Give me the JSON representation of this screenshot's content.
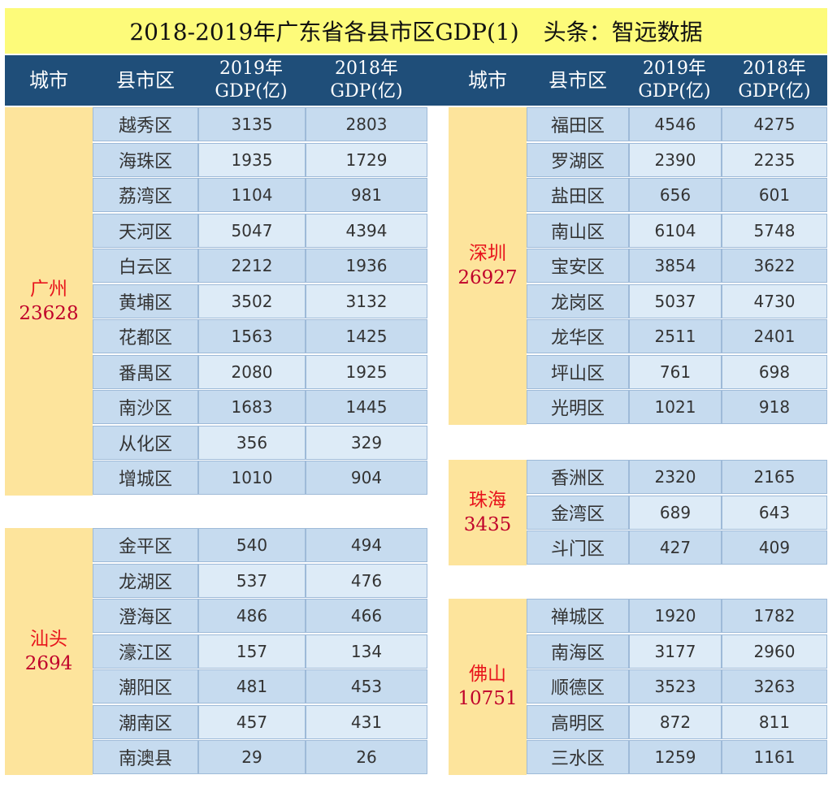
{
  "title": {
    "main": "2018-2019年广东省各县市区GDP(1)",
    "source": "头条：智远数据"
  },
  "headers": {
    "city": "城市",
    "district": "县市区",
    "y2019_line1": "2019年",
    "y2019_line2": "GDP(亿)",
    "y2018_line1": "2018年",
    "y2018_line2": "GDP(亿)"
  },
  "groups": [
    {
      "city": "广州",
      "total": "23628",
      "rows": [
        {
          "district": "越秀区",
          "gdp2019": "3135",
          "gdp2018": "2803"
        },
        {
          "district": "海珠区",
          "gdp2019": "1935",
          "gdp2018": "1729"
        },
        {
          "district": "荔湾区",
          "gdp2019": "1104",
          "gdp2018": "981"
        },
        {
          "district": "天河区",
          "gdp2019": "5047",
          "gdp2018": "4394"
        },
        {
          "district": "白云区",
          "gdp2019": "2212",
          "gdp2018": "1936"
        },
        {
          "district": "黄埔区",
          "gdp2019": "3502",
          "gdp2018": "3132"
        },
        {
          "district": "花都区",
          "gdp2019": "1563",
          "gdp2018": "1425"
        },
        {
          "district": "番禺区",
          "gdp2019": "2080",
          "gdp2018": "1925"
        },
        {
          "district": "南沙区",
          "gdp2019": "1683",
          "gdp2018": "1445"
        },
        {
          "district": "从化区",
          "gdp2019": "356",
          "gdp2018": "329"
        },
        {
          "district": "增城区",
          "gdp2019": "1010",
          "gdp2018": "904"
        }
      ]
    },
    {
      "city": "汕头",
      "total": "2694",
      "rows": [
        {
          "district": "金平区",
          "gdp2019": "540",
          "gdp2018": "494"
        },
        {
          "district": "龙湖区",
          "gdp2019": "537",
          "gdp2018": "476"
        },
        {
          "district": "澄海区",
          "gdp2019": "486",
          "gdp2018": "466"
        },
        {
          "district": "濠江区",
          "gdp2019": "157",
          "gdp2018": "134"
        },
        {
          "district": "潮阳区",
          "gdp2019": "481",
          "gdp2018": "453"
        },
        {
          "district": "潮南区",
          "gdp2019": "457",
          "gdp2018": "431"
        },
        {
          "district": "南澳县",
          "gdp2019": "29",
          "gdp2018": "26"
        }
      ]
    },
    {
      "city": "深圳",
      "total": "26927",
      "rows": [
        {
          "district": "福田区",
          "gdp2019": "4546",
          "gdp2018": "4275"
        },
        {
          "district": "罗湖区",
          "gdp2019": "2390",
          "gdp2018": "2235"
        },
        {
          "district": "盐田区",
          "gdp2019": "656",
          "gdp2018": "601"
        },
        {
          "district": "南山区",
          "gdp2019": "6104",
          "gdp2018": "5748"
        },
        {
          "district": "宝安区",
          "gdp2019": "3854",
          "gdp2018": "3622"
        },
        {
          "district": "龙岗区",
          "gdp2019": "5037",
          "gdp2018": "4730"
        },
        {
          "district": "龙华区",
          "gdp2019": "2511",
          "gdp2018": "2401"
        },
        {
          "district": "坪山区",
          "gdp2019": "761",
          "gdp2018": "698"
        },
        {
          "district": "光明区",
          "gdp2019": "1021",
          "gdp2018": "918"
        }
      ]
    },
    {
      "city": "珠海",
      "total": "3435",
      "rows": [
        {
          "district": "香洲区",
          "gdp2019": "2320",
          "gdp2018": "2165"
        },
        {
          "district": "金湾区",
          "gdp2019": "689",
          "gdp2018": "643"
        },
        {
          "district": "斗门区",
          "gdp2019": "427",
          "gdp2018": "409"
        }
      ]
    },
    {
      "city": "佛山",
      "total": "10751",
      "rows": [
        {
          "district": "禅城区",
          "gdp2019": "1920",
          "gdp2018": "1782"
        },
        {
          "district": "南海区",
          "gdp2019": "3177",
          "gdp2018": "2960"
        },
        {
          "district": "顺德区",
          "gdp2019": "3523",
          "gdp2018": "3263"
        },
        {
          "district": "高明区",
          "gdp2019": "872",
          "gdp2018": "811"
        },
        {
          "district": "三水区",
          "gdp2019": "1259",
          "gdp2018": "1161"
        }
      ]
    }
  ],
  "colors": {
    "title_bg": "#fdfb7a",
    "header_bg": "#1f4e79",
    "city_bg": "#fde49c",
    "city_text": "#e8141c",
    "row_dark": "#c6dbef",
    "row_light": "#ddebf7"
  }
}
